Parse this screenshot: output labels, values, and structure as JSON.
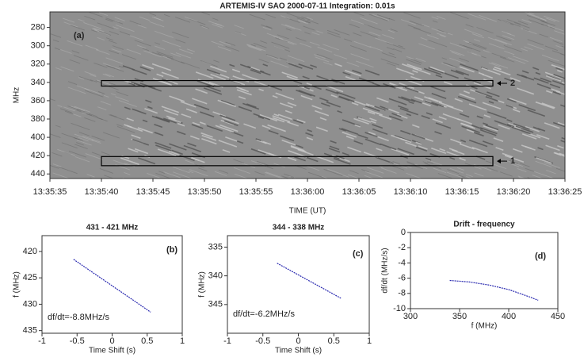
{
  "chart_data": [
    {
      "type": "spectrogram",
      "title": "ARTEMIS-IV  SAO 2000-07-11   Integration: 0.01s",
      "panel": "(a)",
      "xlabel": "TIME (UT)",
      "ylabel": "MHz",
      "xlim": [
        "13:35:35",
        "13:36:25"
      ],
      "xticks": [
        "13:35:35",
        "13:35:40",
        "13:35:45",
        "13:35:50",
        "13:35:55",
        "13:36:00",
        "13:36:05",
        "13:36:10",
        "13:36:15",
        "13:36:20",
        "13:36:25"
      ],
      "ylim": [
        445,
        263
      ],
      "yticks": [
        280,
        300,
        320,
        340,
        360,
        380,
        400,
        420,
        440
      ],
      "boxes": [
        {
          "label": "2",
          "x": [
            "13:35:40",
            "13:36:18"
          ],
          "y": [
            344,
            338
          ]
        },
        {
          "label": "1",
          "x": [
            "13:35:40",
            "13:36:18"
          ],
          "y": [
            431,
            421
          ]
        }
      ]
    },
    {
      "type": "line",
      "title": "431 - 421 MHz",
      "panel": "(b)",
      "xlabel": "Time Shift (s)",
      "ylabel": "f (MHz)",
      "annotation": "df/dt=-8.8MHz/s",
      "xlim": [
        -1,
        1
      ],
      "xticks": [
        -1,
        -0.5,
        0,
        0.5,
        1
      ],
      "ylim": [
        435.5,
        417
      ],
      "yticks": [
        420,
        425,
        430,
        435
      ],
      "x": [
        -0.55,
        0.55
      ],
      "values": [
        421.5,
        431.5
      ],
      "color": "#2a2ab0"
    },
    {
      "type": "line",
      "title": "344 - 338 MHz",
      "panel": "(c)",
      "xlabel": "Time Shift (s)",
      "ylabel": "f (MHz)",
      "annotation": "df/dt=-6.2MHz/s",
      "xlim": [
        -1,
        1
      ],
      "xticks": [
        -1,
        -0.5,
        0,
        0.5,
        1
      ],
      "ylim": [
        350,
        333
      ],
      "yticks": [
        335,
        340,
        345
      ],
      "x": [
        -0.3,
        0.6
      ],
      "values": [
        337.8,
        343.9
      ],
      "color": "#2a2ab0"
    },
    {
      "type": "line",
      "title": "Drift - frequency",
      "panel": "(d)",
      "xlabel": "f (MHz)",
      "ylabel": "df/dt (MHz/s)",
      "xlim": [
        300,
        450
      ],
      "xticks": [
        300,
        350,
        400,
        450
      ],
      "ylim": [
        -10,
        0
      ],
      "yticks": [
        0,
        -2,
        -4,
        -6,
        -8,
        -10
      ],
      "x": [
        340,
        360,
        380,
        400,
        420,
        430
      ],
      "values": [
        -6.3,
        -6.5,
        -6.9,
        -7.5,
        -8.4,
        -8.9
      ],
      "color": "#2a2ab0"
    }
  ]
}
